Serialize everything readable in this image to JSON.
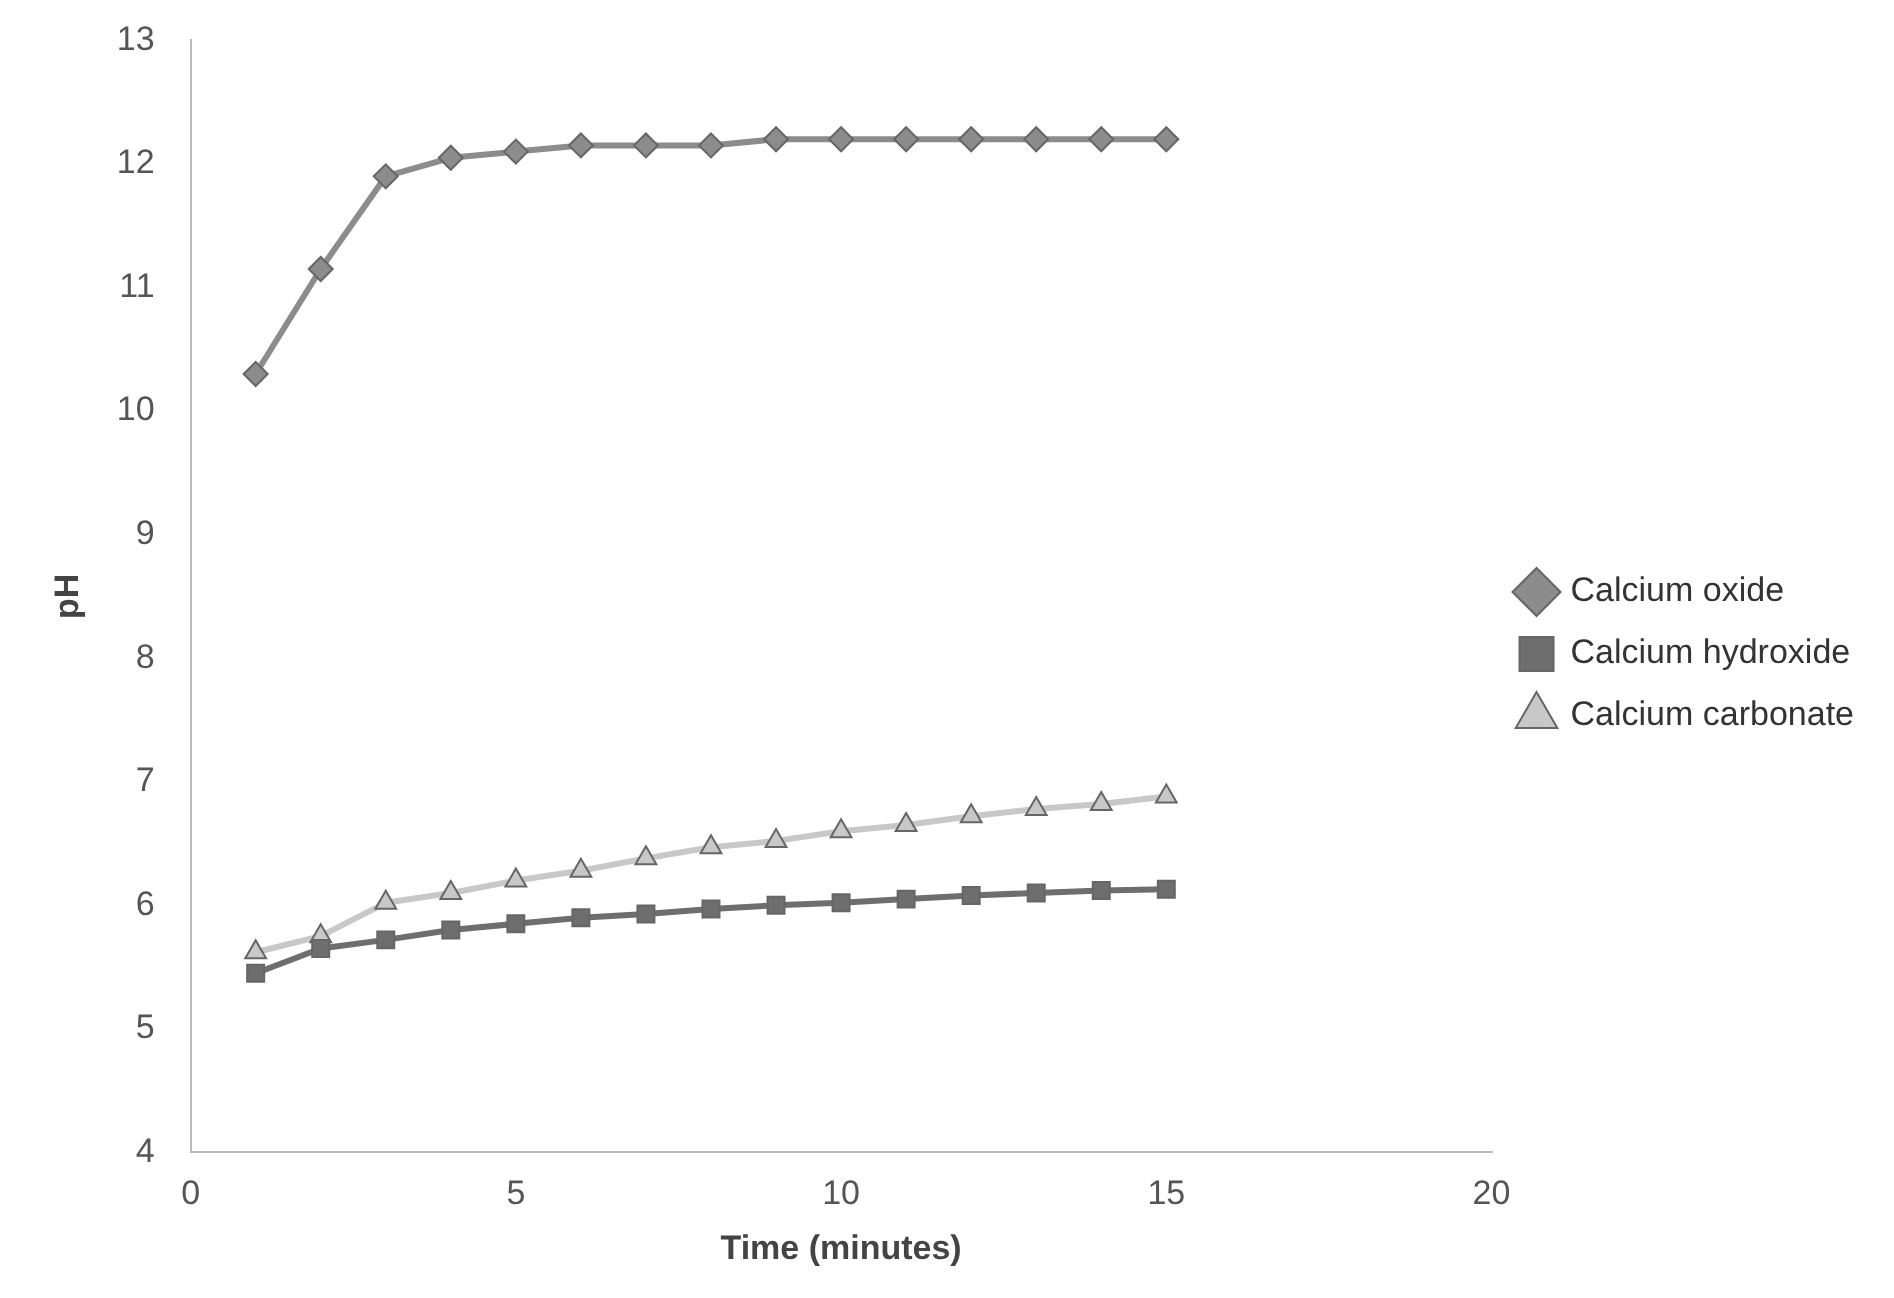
{
  "chart_data": {
    "type": "line",
    "xlabel": "Time (minutes)",
    "ylabel": "pH",
    "x": [
      1,
      2,
      3,
      4,
      5,
      6,
      7,
      8,
      9,
      10,
      11,
      12,
      13,
      14,
      15
    ],
    "xlim": [
      0,
      20
    ],
    "xticks": [
      0,
      5,
      10,
      15,
      20
    ],
    "ylim": [
      4,
      13
    ],
    "yticks": [
      4,
      5,
      6,
      7,
      8,
      9,
      10,
      11,
      12,
      13
    ],
    "grid": false,
    "legend": "right",
    "series": [
      {
        "name": "Calcium oxide",
        "color": "#8c8c8c",
        "marker": "diamond",
        "values": [
          10.3,
          11.15,
          11.9,
          12.05,
          12.1,
          12.15,
          12.15,
          12.15,
          12.2,
          12.2,
          12.2,
          12.2,
          12.2,
          12.2,
          12.2
        ]
      },
      {
        "name": "Calcium hydroxide",
        "color": "#6e6e6e",
        "marker": "square",
        "values": [
          5.45,
          5.65,
          5.72,
          5.8,
          5.85,
          5.9,
          5.93,
          5.97,
          6.0,
          6.02,
          6.05,
          6.08,
          6.1,
          6.12,
          6.13
        ]
      },
      {
        "name": "Calcium carbonate",
        "color": "#c8c8c8",
        "marker": "triangle",
        "values": [
          5.62,
          5.75,
          6.02,
          6.1,
          6.2,
          6.28,
          6.38,
          6.47,
          6.52,
          6.6,
          6.65,
          6.72,
          6.78,
          6.82,
          6.88
        ]
      }
    ]
  }
}
